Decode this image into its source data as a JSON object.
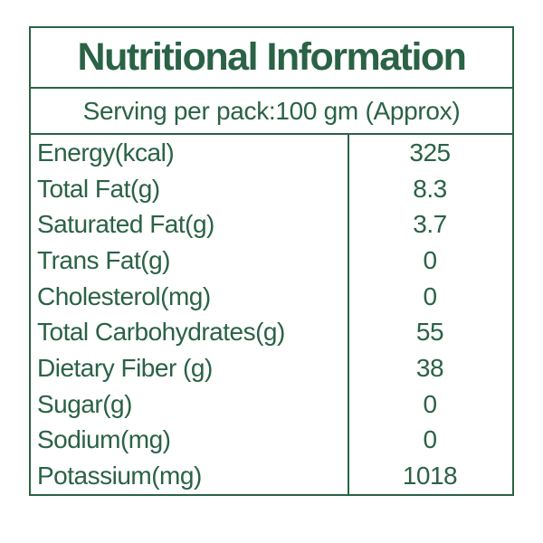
{
  "title": "Nutritional Information",
  "serving_line": "Serving per pack:100 gm (Approx)",
  "colors": {
    "accent_green": "#2a6246",
    "background": "#ffffff"
  },
  "table": {
    "rows": [
      {
        "label": "Energy(kcal)",
        "value": "325"
      },
      {
        "label": "Total Fat(g)",
        "value": "8.3"
      },
      {
        "label": "Saturated Fat(g)",
        "value": "3.7"
      },
      {
        "label": "Trans Fat(g)",
        "value": "0"
      },
      {
        "label": "Cholesterol(mg)",
        "value": "0"
      },
      {
        "label": "Total Carbohydrates(g)",
        "value": "55"
      },
      {
        "label": "Dietary Fiber (g)",
        "value": "38"
      },
      {
        "label": "Sugar(g)",
        "value": "0"
      },
      {
        "label": "Sodium(mg)",
        "value": "0"
      },
      {
        "label": "Potassium(mg)",
        "value": "1018"
      }
    ]
  }
}
